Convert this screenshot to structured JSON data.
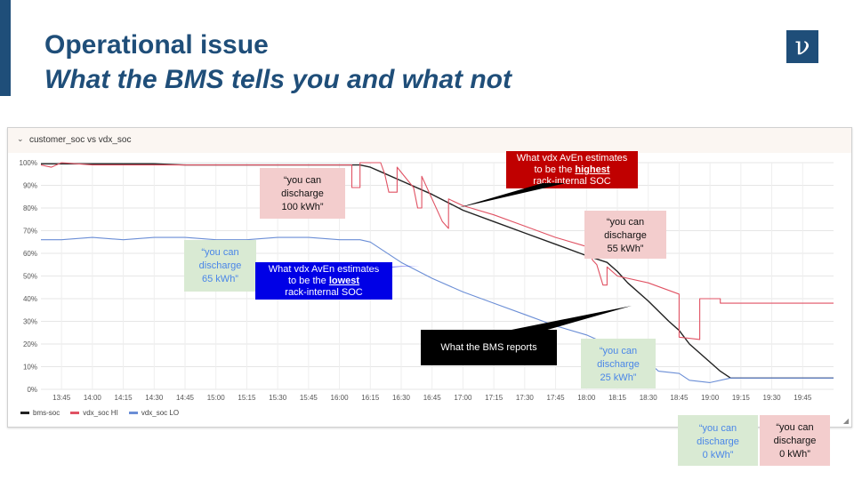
{
  "slide": {
    "title": "Operational issue",
    "subtitle": "What the BMS tells you and what not",
    "logo": "ν"
  },
  "panel": {
    "title": "customer_soc vs vdx_soc",
    "collapse_icon": "chevron-down-icon",
    "resize_icon": "resize-corner-icon"
  },
  "chart_data": {
    "type": "line",
    "title": "customer_soc vs vdx_soc",
    "xlabel": "",
    "ylabel": "",
    "x_ticks": [
      "13:45",
      "14:00",
      "14:15",
      "14:30",
      "14:45",
      "15:00",
      "15:15",
      "15:30",
      "15:45",
      "16:00",
      "16:15",
      "16:30",
      "16:45",
      "17:00",
      "17:15",
      "17:30",
      "17:45",
      "18:00",
      "18:15",
      "18:30",
      "18:45",
      "19:00",
      "19:15",
      "19:30",
      "19:45"
    ],
    "y_ticks": [
      "0%",
      "10%",
      "20%",
      "30%",
      "40%",
      "50%",
      "60%",
      "70%",
      "80%",
      "90%",
      "100%"
    ],
    "ylim": [
      0,
      100
    ],
    "xlim": [
      "13:35",
      "20:00"
    ],
    "grid": true,
    "legend_position": "bottom-left",
    "series": [
      {
        "name": "bms-soc",
        "color": "#222222",
        "points": [
          [
            "13:35",
            99.5
          ],
          [
            "14:00",
            99.5
          ],
          [
            "14:15",
            99.5
          ],
          [
            "14:30",
            99.5
          ],
          [
            "14:45",
            99
          ],
          [
            "15:00",
            99
          ],
          [
            "15:15",
            99
          ],
          [
            "15:30",
            99
          ],
          [
            "15:45",
            99
          ],
          [
            "16:00",
            99
          ],
          [
            "16:10",
            99
          ],
          [
            "16:15",
            98
          ],
          [
            "16:20",
            96
          ],
          [
            "16:30",
            92
          ],
          [
            "16:45",
            86
          ],
          [
            "17:00",
            79
          ],
          [
            "17:15",
            74
          ],
          [
            "17:30",
            69
          ],
          [
            "17:45",
            64
          ],
          [
            "18:00",
            59
          ],
          [
            "18:10",
            56
          ],
          [
            "18:15",
            52
          ],
          [
            "18:20",
            47
          ],
          [
            "18:30",
            39
          ],
          [
            "18:40",
            30
          ],
          [
            "18:45",
            26
          ],
          [
            "18:50",
            20
          ],
          [
            "19:00",
            12
          ],
          [
            "19:05",
            8
          ],
          [
            "19:10",
            5
          ],
          [
            "19:30",
            5
          ],
          [
            "20:00",
            5
          ]
        ]
      },
      {
        "name": "vdx_soc HI",
        "color": "#e05263",
        "points": [
          [
            "13:35",
            99
          ],
          [
            "13:40",
            98
          ],
          [
            "13:45",
            100
          ],
          [
            "14:00",
            99
          ],
          [
            "14:15",
            99
          ],
          [
            "14:30",
            99
          ],
          [
            "14:45",
            99
          ],
          [
            "15:00",
            99
          ],
          [
            "15:15",
            99
          ],
          [
            "15:30",
            99
          ],
          [
            "15:45",
            99
          ],
          [
            "16:00",
            99
          ],
          [
            "16:06",
            99
          ],
          [
            "16:06",
            89
          ],
          [
            "16:10",
            89
          ],
          [
            "16:10",
            100
          ],
          [
            "16:20",
            100
          ],
          [
            "16:22",
            95
          ],
          [
            "16:24",
            87
          ],
          [
            "16:28",
            87
          ],
          [
            "16:28",
            98
          ],
          [
            "16:36",
            89
          ],
          [
            "16:38",
            80
          ],
          [
            "16:40",
            80
          ],
          [
            "16:40",
            94
          ],
          [
            "16:50",
            74
          ],
          [
            "16:53",
            71
          ],
          [
            "16:53",
            84
          ],
          [
            "17:00",
            81
          ],
          [
            "17:15",
            77
          ],
          [
            "17:30",
            72
          ],
          [
            "17:45",
            67
          ],
          [
            "18:00",
            63
          ],
          [
            "18:03",
            57
          ],
          [
            "18:05",
            55
          ],
          [
            "18:08",
            46
          ],
          [
            "18:10",
            46
          ],
          [
            "18:10",
            54
          ],
          [
            "18:15",
            50
          ],
          [
            "18:30",
            47
          ],
          [
            "18:45",
            42
          ],
          [
            "18:45",
            23
          ],
          [
            "18:55",
            22
          ],
          [
            "18:55",
            40
          ],
          [
            "19:00",
            40
          ],
          [
            "19:05",
            40
          ],
          [
            "19:05",
            38
          ],
          [
            "19:30",
            38
          ],
          [
            "19:50",
            38
          ],
          [
            "20:00",
            38
          ]
        ]
      },
      {
        "name": "vdx_soc LO",
        "color": "#6b8ed6",
        "points": [
          [
            "13:35",
            66
          ],
          [
            "13:45",
            66
          ],
          [
            "14:00",
            67
          ],
          [
            "14:15",
            66
          ],
          [
            "14:30",
            67
          ],
          [
            "14:45",
            67
          ],
          [
            "15:00",
            66
          ],
          [
            "15:15",
            66
          ],
          [
            "15:30",
            67
          ],
          [
            "15:45",
            67
          ],
          [
            "16:00",
            66
          ],
          [
            "16:10",
            66
          ],
          [
            "16:15",
            65
          ],
          [
            "16:30",
            56
          ],
          [
            "16:45",
            49
          ],
          [
            "17:00",
            43
          ],
          [
            "17:15",
            38
          ],
          [
            "17:30",
            33
          ],
          [
            "17:45",
            28
          ],
          [
            "18:00",
            24
          ],
          [
            "18:15",
            18
          ],
          [
            "18:30",
            12
          ],
          [
            "18:35",
            8
          ],
          [
            "18:45",
            7
          ],
          [
            "18:50",
            4
          ],
          [
            "19:00",
            3
          ],
          [
            "19:10",
            5
          ],
          [
            "19:30",
            5
          ],
          [
            "20:00",
            5
          ]
        ]
      }
    ],
    "annotations": {
      "pink_100": [
        "“you can",
        "discharge",
        "100 kWh”"
      ],
      "red_highest": {
        "line1": "What vdx AvEn estimates",
        "line2_prefix": "to be the ",
        "line2_em": "highest",
        "line3": "rack-internal SOC"
      },
      "pink_55": [
        "“you can",
        "discharge",
        "55 kWh”"
      ],
      "green_65": [
        "“you can",
        "discharge",
        "65 kWh”"
      ],
      "blue_lowest": {
        "line1": "What vdx AvEn estimates",
        "line2_prefix": "to be the ",
        "line2_em": "lowest",
        "line3": "rack-internal SOC"
      },
      "black_bms": "What the BMS reports",
      "green_25": [
        "“you can",
        "discharge",
        "25 kWh”"
      ],
      "green_0": [
        "“you can",
        "discharge",
        "0 kWh”"
      ],
      "pink_0": [
        "“you can",
        "discharge",
        "0 kWh”"
      ]
    }
  }
}
